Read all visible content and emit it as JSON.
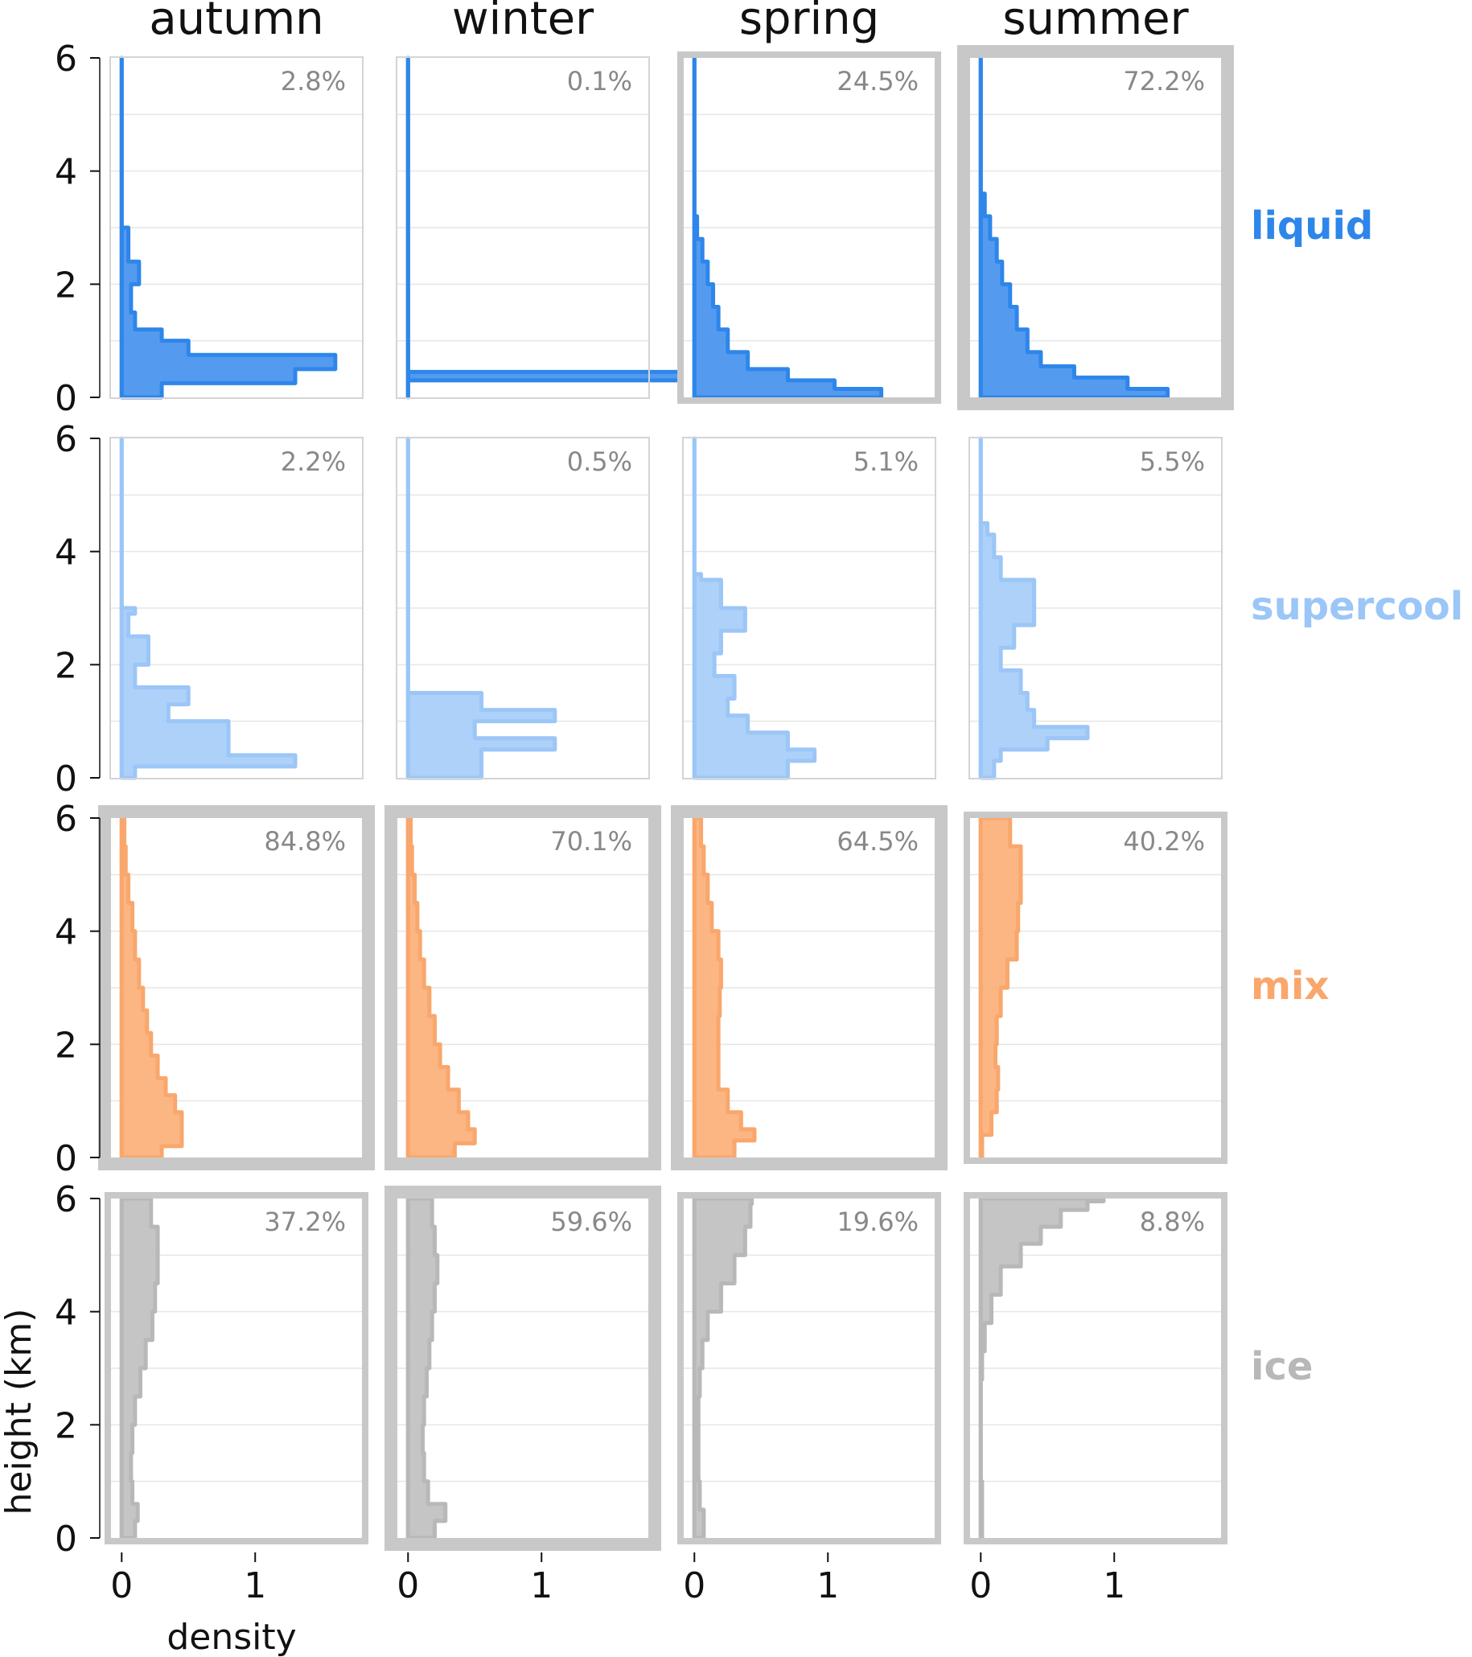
{
  "chart_data": {
    "type": "area",
    "columns": [
      "autumn",
      "winter",
      "spring",
      "summer"
    ],
    "rows": [
      {
        "name": "liquid",
        "color": "#2e86ea",
        "fill": "#4b96ef"
      },
      {
        "name": "supercool",
        "color": "#9bc6f7",
        "fill": "#a9cff8"
      },
      {
        "name": "mix",
        "color": "#f9a76c",
        "fill": "#fbb27c"
      },
      {
        "name": "ice",
        "color": "#b8b8b8",
        "fill": "#c2c2c2"
      }
    ],
    "xlabel": "density",
    "ylabel": "height (km)",
    "xlim": [
      -0.08,
      1.8
    ],
    "ylim": [
      0,
      6
    ],
    "xticks": [
      0,
      1
    ],
    "yticks": [
      0,
      2,
      4,
      6
    ],
    "grid": true,
    "panels": [
      [
        {
          "pct": "2.8%",
          "highlight": 0,
          "profile": [
            [
              0,
              0.3
            ],
            [
              0.25,
              1.3
            ],
            [
              0.5,
              1.6
            ],
            [
              0.75,
              0.5
            ],
            [
              1.0,
              0.3
            ],
            [
              1.2,
              0.1
            ],
            [
              1.5,
              0.07
            ],
            [
              2.0,
              0.13
            ],
            [
              2.4,
              0.05
            ],
            [
              3,
              0
            ],
            [
              6,
              0
            ]
          ]
        },
        {
          "pct": "0.1%",
          "highlight": 0,
          "profile": [
            [
              0,
              0
            ],
            [
              0.3,
              2.5
            ],
            [
              0.45,
              0
            ],
            [
              6,
              0
            ]
          ]
        },
        {
          "pct": "24.5%",
          "highlight": 1,
          "profile": [
            [
              0,
              1.4
            ],
            [
              0.15,
              1.05
            ],
            [
              0.3,
              0.7
            ],
            [
              0.5,
              0.4
            ],
            [
              0.8,
              0.25
            ],
            [
              1.2,
              0.18
            ],
            [
              1.6,
              0.14
            ],
            [
              2.0,
              0.1
            ],
            [
              2.4,
              0.06
            ],
            [
              2.8,
              0.02
            ],
            [
              3.2,
              0
            ],
            [
              6,
              0
            ]
          ]
        },
        {
          "pct": "72.2%",
          "highlight": 2,
          "profile": [
            [
              0,
              1.4
            ],
            [
              0.15,
              1.1
            ],
            [
              0.35,
              0.7
            ],
            [
              0.55,
              0.45
            ],
            [
              0.8,
              0.35
            ],
            [
              1.2,
              0.27
            ],
            [
              1.6,
              0.22
            ],
            [
              2.0,
              0.16
            ],
            [
              2.4,
              0.12
            ],
            [
              2.8,
              0.07
            ],
            [
              3.2,
              0.03
            ],
            [
              3.6,
              0
            ],
            [
              6,
              0
            ]
          ]
        }
      ],
      [
        {
          "pct": "2.2%",
          "highlight": 0,
          "profile": [
            [
              0,
              0.1
            ],
            [
              0.2,
              1.3
            ],
            [
              0.4,
              0.8
            ],
            [
              0.7,
              0.8
            ],
            [
              1.0,
              0.35
            ],
            [
              1.3,
              0.5
            ],
            [
              1.6,
              0.1
            ],
            [
              2.0,
              0.2
            ],
            [
              2.5,
              0.05
            ],
            [
              2.9,
              0.1
            ],
            [
              3.0,
              0
            ],
            [
              6,
              0
            ]
          ]
        },
        {
          "pct": "0.5%",
          "highlight": 0,
          "profile": [
            [
              0,
              0.55
            ],
            [
              0.5,
              1.1
            ],
            [
              0.7,
              0.5
            ],
            [
              1.0,
              1.1
            ],
            [
              1.2,
              0.55
            ],
            [
              1.45,
              0.55
            ],
            [
              1.5,
              0
            ],
            [
              6,
              0
            ]
          ]
        },
        {
          "pct": "5.1%",
          "highlight": 0,
          "profile": [
            [
              0,
              0.7
            ],
            [
              0.3,
              0.9
            ],
            [
              0.5,
              0.7
            ],
            [
              0.8,
              0.4
            ],
            [
              1.1,
              0.25
            ],
            [
              1.4,
              0.3
            ],
            [
              1.8,
              0.15
            ],
            [
              2.2,
              0.2
            ],
            [
              2.6,
              0.38
            ],
            [
              3.0,
              0.2
            ],
            [
              3.5,
              0.05
            ],
            [
              3.6,
              0
            ],
            [
              6,
              0
            ]
          ]
        },
        {
          "pct": "5.5%",
          "highlight": 0,
          "profile": [
            [
              0,
              0.1
            ],
            [
              0.3,
              0.15
            ],
            [
              0.5,
              0.5
            ],
            [
              0.7,
              0.8
            ],
            [
              0.9,
              0.4
            ],
            [
              1.2,
              0.35
            ],
            [
              1.5,
              0.3
            ],
            [
              1.9,
              0.15
            ],
            [
              2.3,
              0.25
            ],
            [
              2.7,
              0.4
            ],
            [
              3.1,
              0.4
            ],
            [
              3.5,
              0.15
            ],
            [
              3.9,
              0.1
            ],
            [
              4.3,
              0.05
            ],
            [
              4.5,
              0
            ],
            [
              6,
              0
            ]
          ]
        }
      ],
      [
        {
          "pct": "84.8%",
          "highlight": 2,
          "profile": [
            [
              0,
              0.3
            ],
            [
              0.2,
              0.45
            ],
            [
              0.5,
              0.45
            ],
            [
              0.8,
              0.4
            ],
            [
              1.1,
              0.33
            ],
            [
              1.4,
              0.27
            ],
            [
              1.8,
              0.22
            ],
            [
              2.2,
              0.19
            ],
            [
              2.6,
              0.16
            ],
            [
              3.0,
              0.13
            ],
            [
              3.5,
              0.1
            ],
            [
              4.0,
              0.08
            ],
            [
              4.5,
              0.05
            ],
            [
              5.0,
              0.03
            ],
            [
              5.5,
              0.02
            ],
            [
              6,
              0.01
            ]
          ]
        },
        {
          "pct": "70.1%",
          "highlight": 2,
          "profile": [
            [
              0,
              0.35
            ],
            [
              0.25,
              0.5
            ],
            [
              0.5,
              0.45
            ],
            [
              0.8,
              0.38
            ],
            [
              1.2,
              0.3
            ],
            [
              1.6,
              0.24
            ],
            [
              2.0,
              0.2
            ],
            [
              2.5,
              0.16
            ],
            [
              3.0,
              0.12
            ],
            [
              3.5,
              0.09
            ],
            [
              4.0,
              0.07
            ],
            [
              4.5,
              0.05
            ],
            [
              5.0,
              0.03
            ],
            [
              5.5,
              0.02
            ],
            [
              6,
              0.01
            ]
          ]
        },
        {
          "pct": "64.5%",
          "highlight": 2,
          "profile": [
            [
              0,
              0.3
            ],
            [
              0.3,
              0.45
            ],
            [
              0.5,
              0.35
            ],
            [
              0.8,
              0.25
            ],
            [
              1.2,
              0.18
            ],
            [
              1.6,
              0.18
            ],
            [
              2.0,
              0.18
            ],
            [
              2.5,
              0.19
            ],
            [
              3.0,
              0.2
            ],
            [
              3.5,
              0.18
            ],
            [
              4.0,
              0.13
            ],
            [
              4.5,
              0.1
            ],
            [
              5.0,
              0.07
            ],
            [
              5.5,
              0.05
            ],
            [
              6,
              0.03
            ]
          ]
        },
        {
          "pct": "40.2%",
          "highlight": 1,
          "profile": [
            [
              0,
              0.01
            ],
            [
              0.4,
              0.08
            ],
            [
              0.8,
              0.12
            ],
            [
              1.2,
              0.13
            ],
            [
              1.6,
              0.11
            ],
            [
              2.0,
              0.12
            ],
            [
              2.5,
              0.15
            ],
            [
              3.0,
              0.2
            ],
            [
              3.5,
              0.27
            ],
            [
              4.0,
              0.28
            ],
            [
              4.5,
              0.3
            ],
            [
              5.0,
              0.3
            ],
            [
              5.5,
              0.22
            ],
            [
              6,
              0.15
            ]
          ]
        }
      ],
      [
        {
          "pct": "37.2%",
          "highlight": 1,
          "profile": [
            [
              0,
              0.1
            ],
            [
              0.3,
              0.12
            ],
            [
              0.6,
              0.08
            ],
            [
              1.0,
              0.07
            ],
            [
              1.5,
              0.08
            ],
            [
              2.0,
              0.1
            ],
            [
              2.5,
              0.14
            ],
            [
              3.0,
              0.18
            ],
            [
              3.5,
              0.23
            ],
            [
              4.0,
              0.25
            ],
            [
              4.5,
              0.27
            ],
            [
              5.0,
              0.27
            ],
            [
              5.5,
              0.22
            ],
            [
              6,
              0.2
            ]
          ]
        },
        {
          "pct": "59.6%",
          "highlight": 2,
          "profile": [
            [
              0,
              0.2
            ],
            [
              0.3,
              0.28
            ],
            [
              0.6,
              0.15
            ],
            [
              1.0,
              0.12
            ],
            [
              1.5,
              0.11
            ],
            [
              2.0,
              0.12
            ],
            [
              2.5,
              0.14
            ],
            [
              3.0,
              0.16
            ],
            [
              3.5,
              0.18
            ],
            [
              4.0,
              0.2
            ],
            [
              4.5,
              0.22
            ],
            [
              5.0,
              0.2
            ],
            [
              5.5,
              0.18
            ],
            [
              6,
              0.17
            ]
          ]
        },
        {
          "pct": "19.6%",
          "highlight": 1,
          "profile": [
            [
              0,
              0.07
            ],
            [
              0.5,
              0.04
            ],
            [
              1.0,
              0.03
            ],
            [
              1.5,
              0.03
            ],
            [
              2.0,
              0.03
            ],
            [
              2.5,
              0.04
            ],
            [
              3.0,
              0.06
            ],
            [
              3.5,
              0.1
            ],
            [
              4.0,
              0.2
            ],
            [
              4.5,
              0.3
            ],
            [
              5.0,
              0.38
            ],
            [
              5.5,
              0.42
            ],
            [
              5.9,
              0.43
            ],
            [
              6,
              0.42
            ]
          ]
        },
        {
          "pct": "8.8%",
          "highlight": 1,
          "profile": [
            [
              0,
              0.01
            ],
            [
              0.3,
              0.01
            ],
            [
              1.0,
              0.0
            ],
            [
              2.0,
              0.0
            ],
            [
              2.8,
              0.01
            ],
            [
              3.3,
              0.03
            ],
            [
              3.8,
              0.08
            ],
            [
              4.3,
              0.15
            ],
            [
              4.8,
              0.3
            ],
            [
              5.2,
              0.45
            ],
            [
              5.5,
              0.6
            ],
            [
              5.8,
              0.8
            ],
            [
              5.95,
              0.92
            ],
            [
              6,
              0.9
            ]
          ]
        }
      ]
    ]
  }
}
